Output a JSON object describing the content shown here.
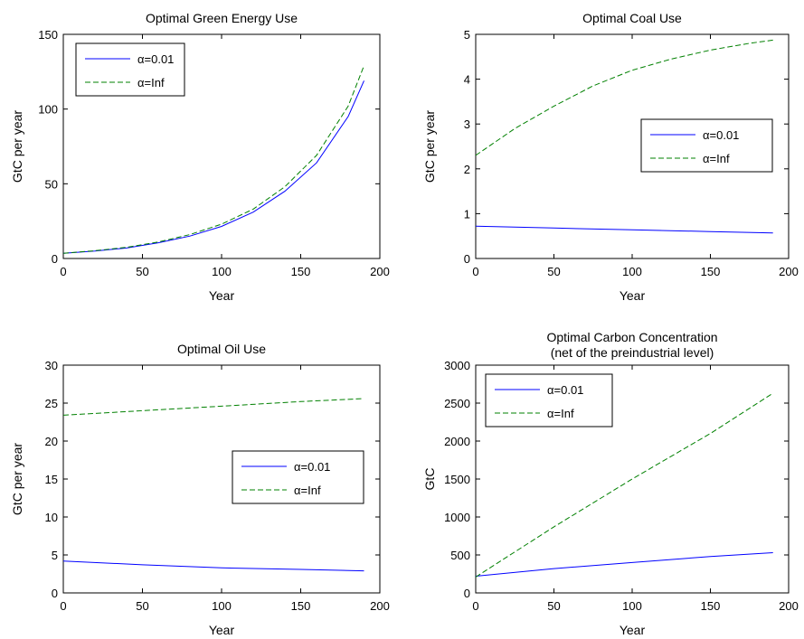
{
  "chart_data": [
    {
      "type": "line",
      "title": "Optimal Green Energy Use",
      "title2": "",
      "xlabel": "Year",
      "ylabel": "GtC per year",
      "xlim": [
        0,
        200
      ],
      "ylim": [
        0,
        150
      ],
      "xticks": [
        0,
        50,
        100,
        150,
        200
      ],
      "yticks": [
        0,
        50,
        100,
        150
      ],
      "legend_position": "top-left",
      "series": [
        {
          "name": "α=0.01",
          "color": "#0000ff",
          "dash": "solid",
          "x": [
            0,
            20,
            40,
            60,
            80,
            100,
            120,
            140,
            160,
            180,
            190
          ],
          "y": [
            3.5,
            5,
            7,
            10.5,
            15,
            21.5,
            31,
            45,
            64,
            95,
            119
          ]
        },
        {
          "name": "α=Inf",
          "color": "#008000",
          "dash": "dashed",
          "x": [
            0,
            20,
            40,
            60,
            80,
            100,
            120,
            140,
            160,
            180,
            190
          ],
          "y": [
            3.5,
            5.2,
            7.5,
            11,
            16,
            23,
            33,
            48,
            69,
            102,
            129
          ]
        }
      ]
    },
    {
      "type": "line",
      "title": "Optimal Coal Use",
      "title2": "",
      "xlabel": "Year",
      "ylabel": "GtC per year",
      "xlim": [
        0,
        200
      ],
      "ylim": [
        0,
        5
      ],
      "xticks": [
        0,
        50,
        100,
        150,
        200
      ],
      "yticks": [
        0,
        1,
        2,
        3,
        4,
        5
      ],
      "legend_position": "middle-right",
      "series": [
        {
          "name": "α=0.01",
          "color": "#0000ff",
          "dash": "solid",
          "x": [
            0,
            50,
            100,
            150,
            190
          ],
          "y": [
            0.72,
            0.68,
            0.64,
            0.6,
            0.57
          ]
        },
        {
          "name": "α=Inf",
          "color": "#008000",
          "dash": "dashed",
          "x": [
            0,
            25,
            50,
            75,
            100,
            125,
            150,
            175,
            190
          ],
          "y": [
            2.3,
            2.9,
            3.4,
            3.85,
            4.2,
            4.45,
            4.65,
            4.8,
            4.87
          ]
        }
      ]
    },
    {
      "type": "line",
      "title": "Optimal Oil Use",
      "title2": "",
      "xlabel": "Year",
      "ylabel": "GtC per year",
      "xlim": [
        0,
        200
      ],
      "ylim": [
        0,
        30
      ],
      "xticks": [
        0,
        50,
        100,
        150,
        200
      ],
      "yticks": [
        0,
        5,
        10,
        15,
        20,
        25,
        30
      ],
      "legend_position": "middle-right",
      "series": [
        {
          "name": "α=0.01",
          "color": "#0000ff",
          "dash": "solid",
          "x": [
            0,
            50,
            100,
            150,
            190
          ],
          "y": [
            4.2,
            3.7,
            3.3,
            3.1,
            2.9
          ]
        },
        {
          "name": "α=Inf",
          "color": "#008000",
          "dash": "dashed",
          "x": [
            0,
            50,
            100,
            150,
            190
          ],
          "y": [
            23.4,
            24.0,
            24.6,
            25.2,
            25.6
          ]
        }
      ]
    },
    {
      "type": "line",
      "title": "Optimal Carbon Concentration",
      "title2": "(net of the preindustrial level)",
      "xlabel": "Year",
      "ylabel": "GtC",
      "xlim": [
        0,
        200
      ],
      "ylim": [
        0,
        3000
      ],
      "xticks": [
        0,
        50,
        100,
        150,
        200
      ],
      "yticks": [
        0,
        500,
        1000,
        1500,
        2000,
        2500,
        3000
      ],
      "legend_position": "top-left",
      "series": [
        {
          "name": "α=0.01",
          "color": "#0000ff",
          "dash": "solid",
          "x": [
            0,
            50,
            100,
            150,
            190
          ],
          "y": [
            220,
            320,
            400,
            480,
            530
          ]
        },
        {
          "name": "α=Inf",
          "color": "#008000",
          "dash": "dashed",
          "x": [
            0,
            50,
            100,
            150,
            190
          ],
          "y": [
            210,
            870,
            1500,
            2100,
            2630
          ]
        }
      ]
    }
  ]
}
